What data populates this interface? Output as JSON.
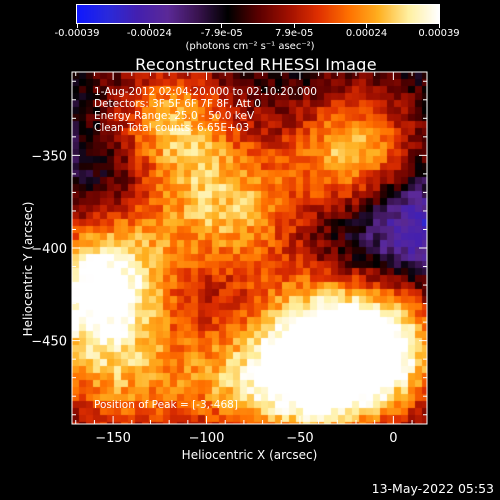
{
  "colorbar": {
    "ticks": [
      "-0.00039",
      "-0.00024",
      "-7.9e-05",
      "7.9e-05",
      "0.00024",
      "0.00039"
    ],
    "unit_label": "(photons cm⁻² s⁻¹ asec⁻²)",
    "range": [
      -0.00039,
      0.00039
    ]
  },
  "chart_data": {
    "type": "heatmap",
    "title": "Reconstructed RHESSI Image",
    "xlabel": "Heliocentric X (arcsec)",
    "ylabel": "Heliocentric Y (arcsec)",
    "xlim": [
      -172,
      18
    ],
    "ylim": [
      -495,
      -305
    ],
    "x_ticks": [
      -150,
      -100,
      -50,
      0
    ],
    "y_ticks": [
      -350,
      -400,
      -450
    ],
    "annotations": [
      "1-Aug-2012 02:04:20.000 to 02:10:20.000",
      "Detectors: 3F 5F 6F 7F 8F, Att 0",
      "Energy Range: 25.0 - 50.0 keV",
      "Clean     Total counts: 6.65E+03"
    ],
    "peak_text": "Position of Peak = [-3,-468]",
    "peak": [
      -3,
      -468
    ],
    "colormap": [
      "#1018ff",
      "#2a2adc",
      "#4420b0",
      "#5c2a98",
      "#3a1450",
      "#000000",
      "#5a0000",
      "#a01000",
      "#e03000",
      "#ff7000",
      "#ffb020",
      "#fff0a0",
      "#ffffff"
    ],
    "emission_regions": [
      {
        "x": -45,
        "y": -470,
        "intensity": 1.0
      },
      {
        "x": -5,
        "y": -455,
        "intensity": 0.95
      },
      {
        "x": -160,
        "y": -425,
        "intensity": 0.95
      },
      {
        "x": -20,
        "y": -350,
        "intensity": 0.8
      },
      {
        "x": -120,
        "y": -335,
        "intensity": 0.75
      },
      {
        "x": -85,
        "y": -380,
        "intensity": 0.65
      },
      {
        "x": -150,
        "y": -475,
        "intensity": 0.5
      },
      {
        "x": -95,
        "y": -470,
        "intensity": 0.5
      },
      {
        "x": -40,
        "y": -425,
        "intensity": 0.45
      },
      {
        "x": -140,
        "y": -395,
        "intensity": 0.35
      }
    ],
    "negative_regions": [
      {
        "x": 10,
        "y": -385,
        "intensity": 1.0
      },
      {
        "x": -30,
        "y": -400,
        "intensity": 0.6
      },
      {
        "x": -150,
        "y": -360,
        "intensity": 0.55
      }
    ]
  },
  "footer": {
    "timestamp": "13-May-2022 05:53"
  }
}
